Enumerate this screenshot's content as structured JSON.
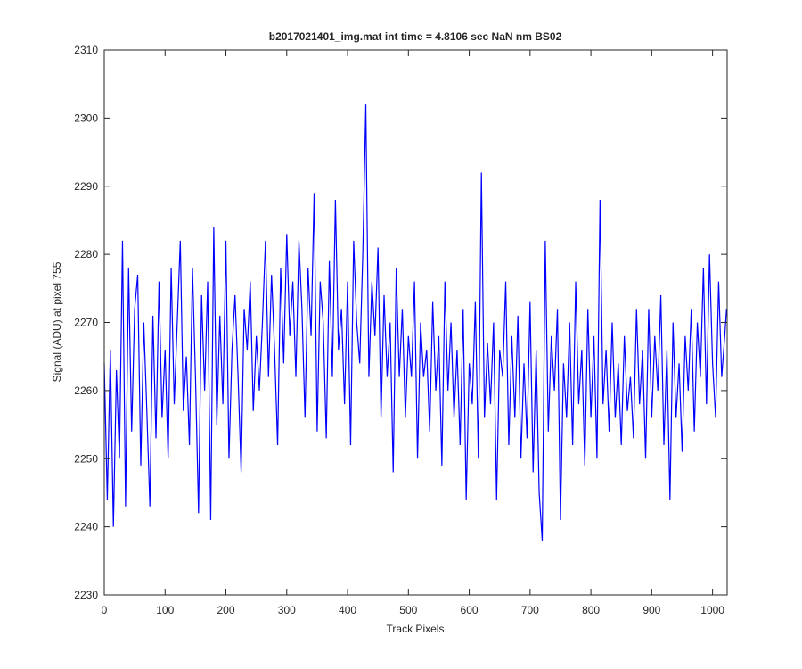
{
  "chart_data": {
    "type": "line",
    "title": "b2017021401_img.mat int time = 4.8106 sec  NaN nm BS02",
    "x_label": "Track Pixels",
    "y_label": "Signal (ADU) at pixel 755",
    "color": "#0000ff",
    "xlim": [
      0,
      1024
    ],
    "xticks": [
      0,
      100,
      200,
      300,
      400,
      500,
      600,
      700,
      800,
      900,
      1000
    ],
    "ylim": [
      2230,
      2310
    ],
    "yticks": [
      2230,
      2240,
      2250,
      2260,
      2270,
      2280,
      2290,
      2300,
      2310
    ],
    "x": [
      0,
      5,
      10,
      15,
      20,
      25,
      30,
      35,
      40,
      45,
      50,
      55,
      60,
      65,
      70,
      75,
      80,
      85,
      90,
      95,
      100,
      105,
      110,
      115,
      120,
      125,
      130,
      135,
      140,
      145,
      150,
      155,
      160,
      165,
      170,
      175,
      180,
      185,
      190,
      195,
      200,
      205,
      210,
      215,
      220,
      225,
      230,
      235,
      240,
      245,
      250,
      255,
      260,
      265,
      270,
      275,
      280,
      285,
      290,
      295,
      300,
      305,
      310,
      315,
      320,
      325,
      330,
      335,
      340,
      345,
      350,
      355,
      360,
      365,
      370,
      375,
      380,
      385,
      390,
      395,
      400,
      405,
      410,
      415,
      420,
      425,
      430,
      435,
      440,
      445,
      450,
      455,
      460,
      465,
      470,
      475,
      480,
      485,
      490,
      495,
      500,
      505,
      510,
      515,
      520,
      525,
      530,
      535,
      540,
      545,
      550,
      555,
      560,
      565,
      570,
      575,
      580,
      585,
      590,
      595,
      600,
      605,
      610,
      615,
      620,
      625,
      630,
      635,
      640,
      645,
      650,
      655,
      660,
      665,
      670,
      675,
      680,
      685,
      690,
      695,
      700,
      705,
      710,
      715,
      720,
      725,
      730,
      735,
      740,
      745,
      750,
      755,
      760,
      765,
      770,
      775,
      780,
      785,
      790,
      795,
      800,
      805,
      810,
      815,
      820,
      825,
      830,
      835,
      840,
      845,
      850,
      855,
      860,
      865,
      870,
      875,
      880,
      885,
      890,
      895,
      900,
      905,
      910,
      915,
      920,
      925,
      930,
      935,
      940,
      945,
      950,
      955,
      960,
      965,
      970,
      975,
      980,
      985,
      990,
      995,
      1000,
      1005,
      1010,
      1015,
      1020,
      1023
    ],
    "values": [
      2264,
      2244,
      2266,
      2240,
      2263,
      2250,
      2282,
      2243,
      2278,
      2254,
      2272,
      2277,
      2249,
      2270,
      2257,
      2243,
      2271,
      2253,
      2276,
      2256,
      2266,
      2250,
      2278,
      2258,
      2270,
      2282,
      2257,
      2265,
      2252,
      2278,
      2262,
      2242,
      2274,
      2260,
      2276,
      2241,
      2284,
      2255,
      2271,
      2258,
      2282,
      2250,
      2266,
      2274,
      2262,
      2248,
      2272,
      2266,
      2276,
      2257,
      2268,
      2260,
      2270,
      2282,
      2262,
      2277,
      2266,
      2252,
      2278,
      2264,
      2283,
      2268,
      2276,
      2262,
      2282,
      2272,
      2256,
      2278,
      2268,
      2289,
      2254,
      2276,
      2270,
      2253,
      2279,
      2262,
      2288,
      2266,
      2272,
      2258,
      2276,
      2252,
      2282,
      2270,
      2264,
      2280,
      2302,
      2262,
      2276,
      2268,
      2281,
      2256,
      2274,
      2262,
      2270,
      2248,
      2278,
      2262,
      2272,
      2256,
      2268,
      2262,
      2276,
      2250,
      2270,
      2262,
      2266,
      2254,
      2273,
      2260,
      2268,
      2249,
      2276,
      2260,
      2270,
      2256,
      2266,
      2252,
      2272,
      2244,
      2264,
      2258,
      2273,
      2250,
      2292,
      2256,
      2267,
      2258,
      2270,
      2244,
      2266,
      2262,
      2276,
      2252,
      2268,
      2256,
      2271,
      2250,
      2264,
      2253,
      2273,
      2248,
      2266,
      2245,
      2238,
      2282,
      2254,
      2268,
      2260,
      2272,
      2241,
      2264,
      2256,
      2270,
      2252,
      2276,
      2258,
      2266,
      2249,
      2272,
      2256,
      2268,
      2250,
      2288,
      2258,
      2266,
      2254,
      2270,
      2256,
      2264,
      2252,
      2268,
      2257,
      2262,
      2253,
      2272,
      2258,
      2266,
      2250,
      2272,
      2256,
      2268,
      2260,
      2274,
      2252,
      2266,
      2244,
      2270,
      2256,
      2264,
      2251,
      2268,
      2260,
      2272,
      2254,
      2270,
      2262,
      2278,
      2258,
      2280,
      2264,
      2256,
      2276,
      2262,
      2268,
      2272
    ]
  }
}
